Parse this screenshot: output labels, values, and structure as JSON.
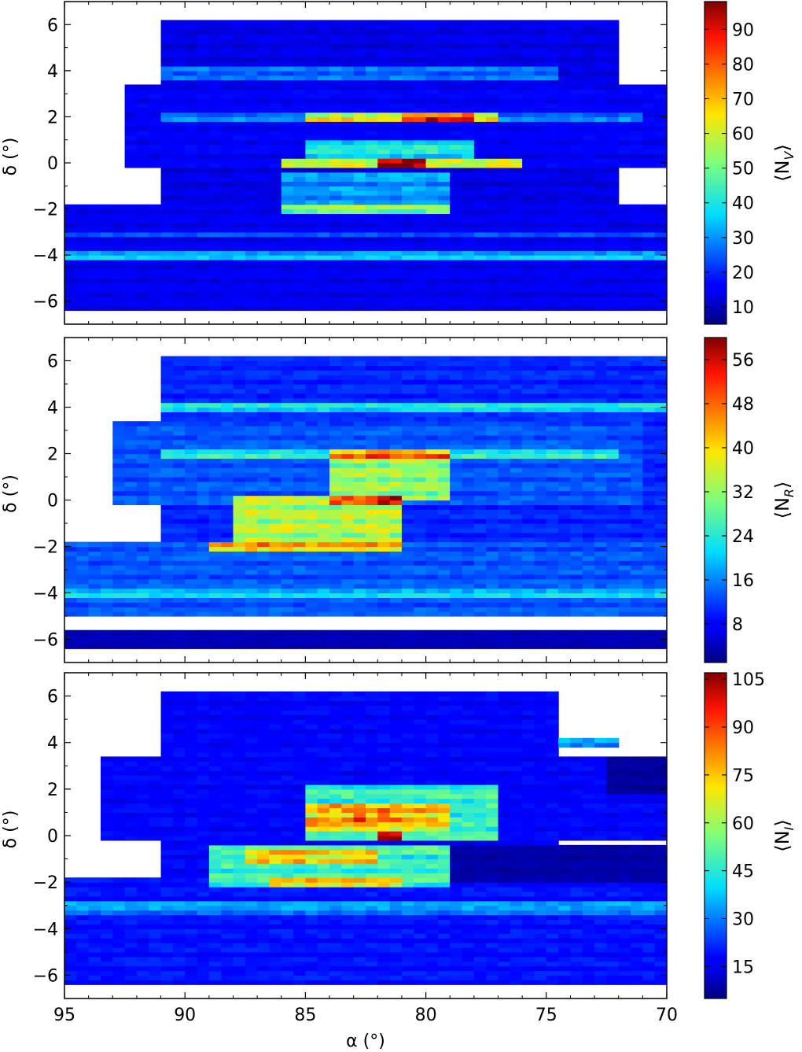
{
  "chart_data": [
    {
      "type": "heatmap",
      "panel": "top",
      "title": "",
      "xlabel": "",
      "ylabel": "δ (°)",
      "xlim": [
        95,
        70
      ],
      "ylim": [
        -7,
        7
      ],
      "yticks": [
        6,
        4,
        2,
        0,
        -2,
        -4,
        -6
      ],
      "colorbar": {
        "label": "⟨N_V⟩",
        "label_main": "⟨N",
        "label_sub": "V",
        "label_close": "⟩",
        "min": 5,
        "max": 98,
        "ticks": [
          10,
          20,
          30,
          40,
          50,
          60,
          70,
          80,
          90
        ]
      },
      "base_value": 12,
      "regions": [
        {
          "x": [
            91,
            72
          ],
          "y": [
            -6.4,
            6.2
          ],
          "v": 14
        },
        {
          "x": [
            95,
            70
          ],
          "y": [
            -6.4,
            -1.8
          ],
          "v": 15
        },
        {
          "x": [
            92.5,
            70
          ],
          "y": [
            -0.2,
            3.5
          ],
          "v": 16
        },
        {
          "x": [
            91,
            74.5
          ],
          "y": [
            3.7,
            4.2
          ],
          "v": 28
        },
        {
          "x": [
            91,
            71
          ],
          "y": [
            1.7,
            2.1
          ],
          "v": 30
        },
        {
          "x": [
            85,
            77
          ],
          "y": [
            1.7,
            2.1
          ],
          "v": 66
        },
        {
          "x": [
            81,
            78
          ],
          "y": [
            1.7,
            2.1
          ],
          "v": 88
        },
        {
          "x": [
            85,
            78
          ],
          "y": [
            0.2,
            1.0
          ],
          "v": 42
        },
        {
          "x": [
            86,
            76
          ],
          "y": [
            -0.2,
            0.3
          ],
          "v": 60
        },
        {
          "x": [
            82,
            80
          ],
          "y": [
            -0.2,
            0.3
          ],
          "v": 96
        },
        {
          "x": [
            86,
            79
          ],
          "y": [
            -2.2,
            -0.3
          ],
          "v": 32
        },
        {
          "x": [
            86,
            79
          ],
          "y": [
            -2.2,
            -1.9
          ],
          "v": 55
        },
        {
          "x": [
            95,
            70
          ],
          "y": [
            -4.2,
            -3.8
          ],
          "v": 36
        },
        {
          "x": [
            95,
            70
          ],
          "y": [
            -3.2,
            -3.0
          ],
          "v": 24
        }
      ]
    },
    {
      "type": "heatmap",
      "panel": "middle",
      "title": "",
      "xlabel": "",
      "ylabel": "δ (°)",
      "xlim": [
        95,
        70
      ],
      "ylim": [
        -7,
        7
      ],
      "yticks": [
        6,
        4,
        2,
        0,
        -2,
        -4,
        -6
      ],
      "colorbar": {
        "label": "⟨N_R⟩",
        "label_main": "⟨N",
        "label_sub": "R",
        "label_close": "⟩",
        "min": 1,
        "max": 60,
        "ticks": [
          8,
          16,
          24,
          32,
          40,
          48,
          56
        ]
      },
      "base_value": 10,
      "regions": [
        {
          "x": [
            91,
            70
          ],
          "y": [
            -5.0,
            6.2
          ],
          "v": 11
        },
        {
          "x": [
            95,
            70
          ],
          "y": [
            -5.0,
            -1.8
          ],
          "v": 14
        },
        {
          "x": [
            93,
            71
          ],
          "y": [
            -0.2,
            3.5
          ],
          "v": 14
        },
        {
          "x": [
            91,
            70
          ],
          "y": [
            3.8,
            4.2
          ],
          "v": 24
        },
        {
          "x": [
            91,
            72
          ],
          "y": [
            1.8,
            2.2
          ],
          "v": 26
        },
        {
          "x": [
            84,
            79
          ],
          "y": [
            0.0,
            2.2
          ],
          "v": 34
        },
        {
          "x": [
            84,
            79
          ],
          "y": [
            1.8,
            2.2
          ],
          "v": 50
        },
        {
          "x": [
            88,
            81
          ],
          "y": [
            -2.2,
            0.2
          ],
          "v": 36
        },
        {
          "x": [
            84,
            81
          ],
          "y": [
            -0.2,
            0.2
          ],
          "v": 50
        },
        {
          "x": [
            82,
            81
          ],
          "y": [
            -0.2,
            0.2
          ],
          "v": 58
        },
        {
          "x": [
            89,
            81
          ],
          "y": [
            -2.2,
            -1.9
          ],
          "v": 46
        },
        {
          "x": [
            95,
            70
          ],
          "y": [
            -4.2,
            -3.8
          ],
          "v": 22
        },
        {
          "x": [
            95,
            70
          ],
          "y": [
            -6.4,
            -5.6
          ],
          "v": 4
        }
      ]
    },
    {
      "type": "heatmap",
      "panel": "bottom",
      "title": "",
      "xlabel": "α (°)",
      "ylabel": "δ (°)",
      "xlim": [
        95,
        70
      ],
      "ylim": [
        -7,
        7
      ],
      "yticks": [
        6,
        4,
        2,
        0,
        -2,
        -4,
        -6
      ],
      "xticks": [
        95,
        90,
        85,
        80,
        75,
        70
      ],
      "colorbar": {
        "label": "⟨N_I⟩",
        "label_main": "⟨N",
        "label_sub": "I",
        "label_close": "⟩",
        "min": 5,
        "max": 107,
        "ticks": [
          15,
          30,
          45,
          60,
          75,
          90,
          105
        ]
      },
      "base_value": 15,
      "regions": [
        {
          "x": [
            91,
            74.5
          ],
          "y": [
            -6.4,
            6.2
          ],
          "v": 18
        },
        {
          "x": [
            95,
            70
          ],
          "y": [
            -6.4,
            -1.8
          ],
          "v": 20
        },
        {
          "x": [
            93.5,
            70
          ],
          "y": [
            -0.2,
            3.5
          ],
          "v": 18
        },
        {
          "x": [
            74.5,
            72
          ],
          "y": [
            3.8,
            4.2
          ],
          "v": 35
        },
        {
          "x": [
            72.5,
            70
          ],
          "y": [
            1.8,
            3.5
          ],
          "v": 8
        },
        {
          "x": [
            85,
            77
          ],
          "y": [
            -0.1,
            2.1
          ],
          "v": 50
        },
        {
          "x": [
            85,
            79
          ],
          "y": [
            0.2,
            1.5
          ],
          "v": 78
        },
        {
          "x": [
            83,
            81
          ],
          "y": [
            0.6,
            1.2
          ],
          "v": 90
        },
        {
          "x": [
            89,
            79
          ],
          "y": [
            -2.2,
            -0.3
          ],
          "v": 50
        },
        {
          "x": [
            87.5,
            82
          ],
          "y": [
            -1.1,
            -0.6
          ],
          "v": 78
        },
        {
          "x": [
            86.5,
            81
          ],
          "y": [
            -2.2,
            -1.9
          ],
          "v": 80
        },
        {
          "x": [
            82,
            81
          ],
          "y": [
            -0.1,
            0.3
          ],
          "v": 104
        },
        {
          "x": [
            79,
            70
          ],
          "y": [
            -1.9,
            -0.3
          ],
          "v": 9
        },
        {
          "x": [
            95,
            70
          ],
          "y": [
            -3.3,
            -2.9
          ],
          "v": 34
        }
      ]
    }
  ]
}
